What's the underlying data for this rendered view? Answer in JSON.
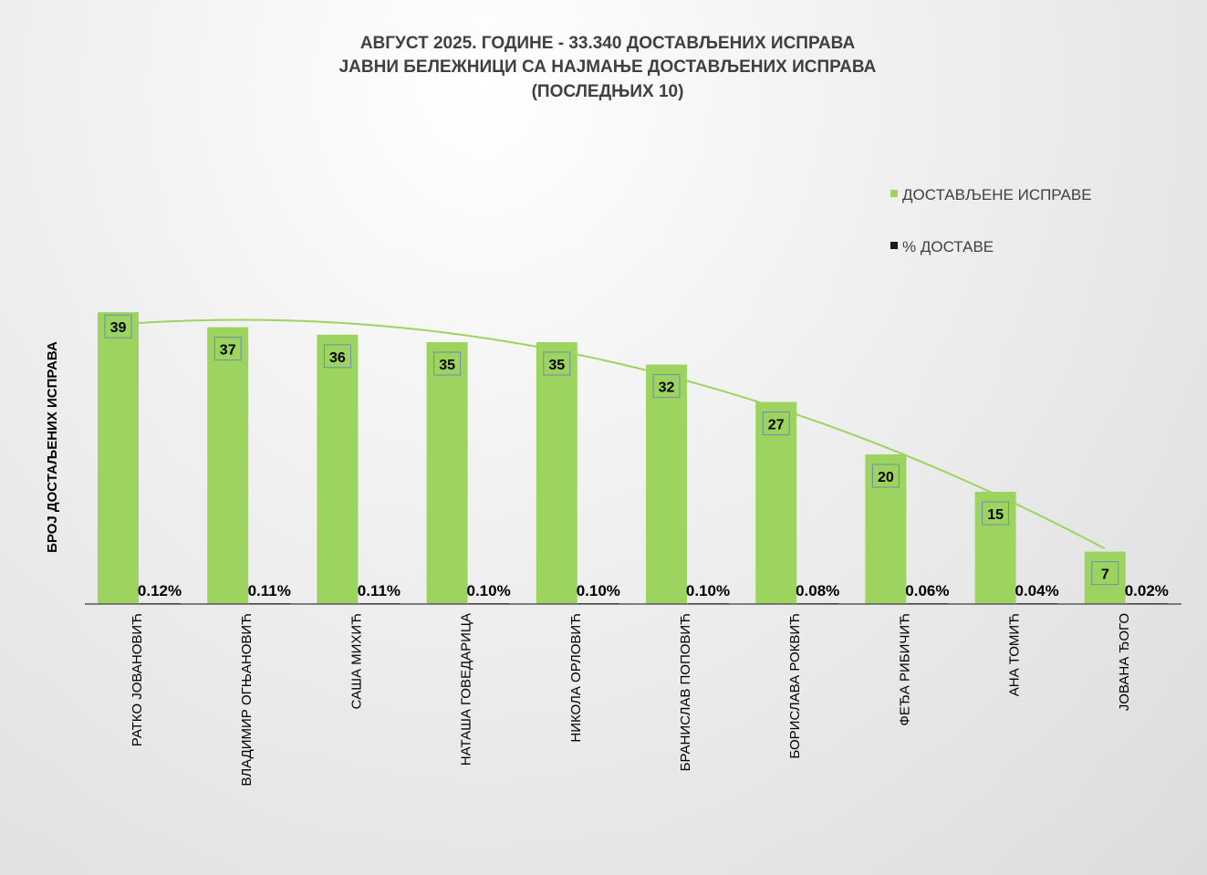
{
  "chart_data": {
    "type": "bar",
    "title_lines": [
      "АВГУСТ 2025. ГОДИНЕ - 33.340 ДОСТАВЉЕНИХ  ИСПРАВА",
      "ЈАВНИ БЕЛЕЖНИЦИ СА НАЈМАЊЕ ДОСТАВЉЕНИХ  ИСПРАВА",
      "(ПОСЛЕДЊИХ 10)"
    ],
    "ylabel": "БРОЈ ДОСТАЉЕНИХ ИСПРАВА",
    "xlabel": "",
    "ylim": [
      0,
      40
    ],
    "grid": false,
    "legend_position": "top-right",
    "categories": [
      "РАТКО ЈОВАНОВИЋ",
      "ВЛАДИМИР ОГЊАНОВИЋ",
      "САША МИХИЋ",
      "НАТАША ГОВЕДАРИЦА",
      "НИКОЛА ОРЛОВИЋ",
      "БРАНИСЛАВ ПОПОВИЋ",
      "БОРИСЛАВА РОКВИЋ",
      "ФЕЂА РИБИЧИЋ",
      "АНА ТОМИЋ",
      "ЈОВАНА ЂОГО"
    ],
    "series": [
      {
        "name": "ДОСТАВЉЕНЕ  ИСПРАВЕ",
        "color": "#9dd35f",
        "values": [
          39,
          37,
          36,
          35,
          35,
          32,
          27,
          20,
          15,
          7
        ]
      },
      {
        "name": "% ДОСТАВЕ",
        "color": "#1a1a1a",
        "values": [
          0.12,
          0.11,
          0.11,
          0.1,
          0.1,
          0.1,
          0.08,
          0.06,
          0.04,
          0.02
        ],
        "labels": [
          "0.12%",
          "0.11%",
          "0.11%",
          "0.10%",
          "0.10%",
          "0.10%",
          "0.08%",
          "0.06%",
          "0.04%",
          "0.02%"
        ]
      }
    ],
    "trendline": {
      "type": "polynomial",
      "series": "ДОСТАВЉЕНЕ  ИСПРАВЕ",
      "color": "#9dd35f"
    }
  }
}
